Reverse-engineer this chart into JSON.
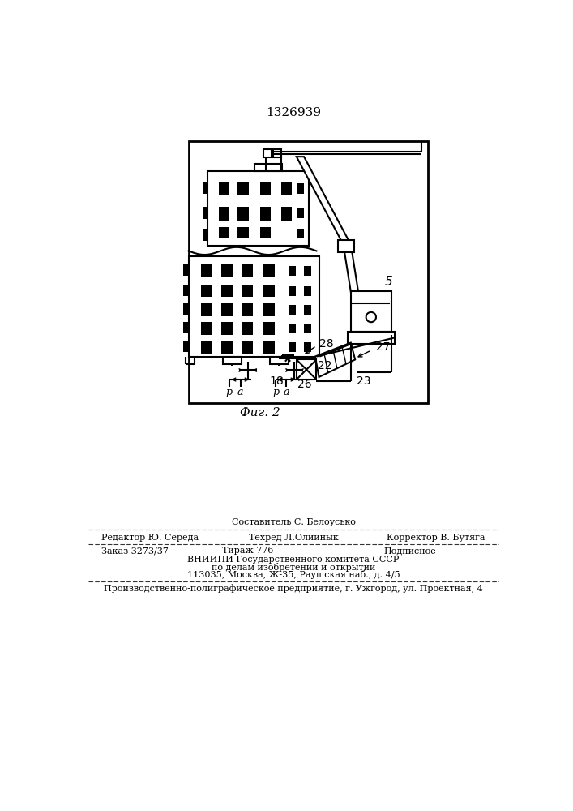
{
  "title": "1326939",
  "fig_label": "Фиг. 2",
  "label_5": "5",
  "label_27": "27",
  "label_28": "28",
  "label_22": "22",
  "label_26": "26",
  "label_18": "18",
  "label_23": "23",
  "footer_line0": "Составитель С. Белоуськo",
  "footer_line1_left": "Редактор Ю. Середа",
  "footer_line1_center": "Техред Л.Олийнык",
  "footer_line1_right": "Корректор В. Бутяга",
  "footer_line2_left": "Заказ 3273/37",
  "footer_line2_center": "Тираж 776",
  "footer_line2_right": "Подписное",
  "footer_line3": "ВНИИПИ Государственного комитета СССР",
  "footer_line4": "по делам изобретений и открытий",
  "footer_line5": "113035, Москва, Ж-35, Раушская наб., д. 4/5",
  "footer_line6": "Производственно-полиграфическое предприятие, г. Ужгород, ул. Проектная, 4",
  "bg_color": "#ffffff",
  "lc": "#000000"
}
